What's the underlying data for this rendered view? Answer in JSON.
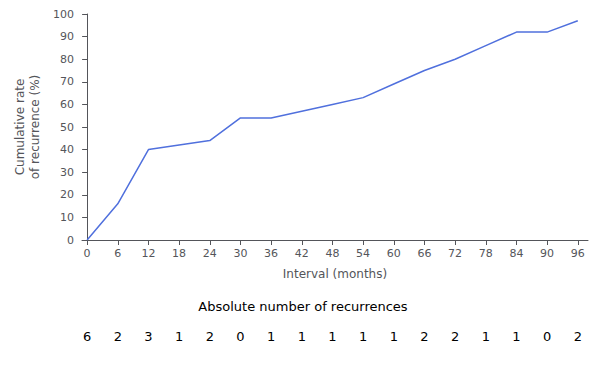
{
  "chart_data": {
    "type": "line",
    "x": [
      0,
      6,
      12,
      18,
      24,
      30,
      36,
      42,
      48,
      54,
      60,
      66,
      72,
      78,
      84,
      90,
      96
    ],
    "values": [
      0,
      16,
      40,
      42,
      44,
      54,
      54,
      57,
      60,
      63,
      69,
      75,
      80,
      86,
      92,
      92,
      97
    ],
    "xlabel": "Interval (months)",
    "ylabel": "Cumulative rate\nof recurrence (%)",
    "xlim": [
      -1,
      98
    ],
    "xticks": [
      0,
      6,
      12,
      18,
      24,
      30,
      36,
      42,
      48,
      54,
      60,
      66,
      72,
      78,
      84,
      90,
      96
    ],
    "ylim": [
      0,
      100
    ],
    "yticks": [
      0,
      10,
      20,
      30,
      40,
      50,
      60,
      70,
      80,
      90,
      100
    ],
    "grid": false,
    "annotation": "Absolute number of recurrences",
    "counts": [
      6,
      2,
      3,
      1,
      2,
      0,
      1,
      1,
      1,
      1,
      1,
      2,
      2,
      1,
      1,
      0,
      2
    ]
  }
}
